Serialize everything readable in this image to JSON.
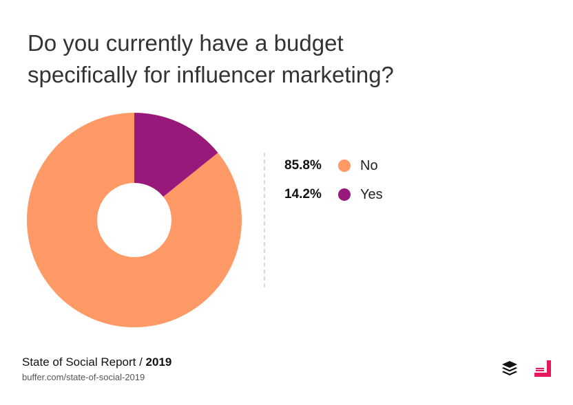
{
  "title": {
    "line1": "Do you currently have a budget",
    "line2": "specifically for influencer marketing?"
  },
  "chart_data": {
    "type": "pie",
    "variant": "donut",
    "title": "Do you currently have a budget specifically for influencer marketing?",
    "categories": [
      "No",
      "Yes"
    ],
    "values": [
      85.8,
      14.2
    ],
    "value_labels": [
      "85.8%",
      "14.2%"
    ],
    "colors": [
      "#FF9966",
      "#99197A"
    ],
    "legend_position": "right"
  },
  "footer": {
    "report": "State of Social Report / ",
    "year": "2019",
    "url": "buffer.com/state-of-social-2019"
  },
  "icons": {
    "buffer": "buffer-logo-icon",
    "social_media_logo": "social-media-logo-icon"
  }
}
